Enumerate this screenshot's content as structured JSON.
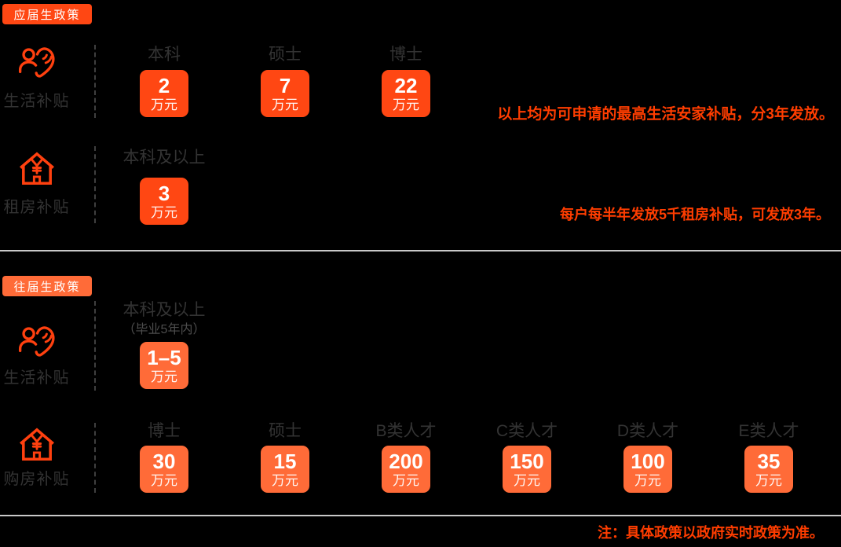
{
  "sections": [
    {
      "id": "fresh-graduates",
      "badge": "应届生政策",
      "accent": "#ff4713",
      "rows": [
        {
          "icon": "care-icon",
          "label": "生活补贴",
          "columns": [
            {
              "header": "本科",
              "value": "2",
              "unit": "万元"
            },
            {
              "header": "硕士",
              "value": "7",
              "unit": "万元"
            },
            {
              "header": "博士",
              "value": "22",
              "unit": "万元"
            }
          ],
          "note": "以上均为可申请的最高生活安家补贴，分3年发放。"
        },
        {
          "icon": "house-icon",
          "label": "租房补贴",
          "columns": [
            {
              "header": "本科及以上",
              "value": "3",
              "unit": "万元"
            }
          ],
          "note": "每户每半年发放5千租房补贴，可发放3年。"
        }
      ]
    },
    {
      "id": "previous-graduates",
      "badge": "往届生政策",
      "accent": "#ff6b38",
      "rows": [
        {
          "icon": "care-icon",
          "label": "生活补贴",
          "columns": [
            {
              "header": "本科及以上",
              "subheader": "（毕业5年内）",
              "value": "1–5",
              "unit": "万元"
            }
          ]
        },
        {
          "icon": "house-icon",
          "label": "购房补贴",
          "columns": [
            {
              "header": "博士",
              "value": "30",
              "unit": "万元"
            },
            {
              "header": "硕士",
              "value": "15",
              "unit": "万元"
            },
            {
              "header": "B类人才",
              "value": "200",
              "unit": "万元"
            },
            {
              "header": "C类人才",
              "value": "150",
              "unit": "万元"
            },
            {
              "header": "D类人才",
              "value": "100",
              "unit": "万元"
            },
            {
              "header": "E类人才",
              "value": "35",
              "unit": "万元"
            }
          ]
        }
      ]
    }
  ],
  "footnote": "注：具体政策以政府实时政策为准。",
  "colors": {
    "background": "#000000",
    "section1_accent": "#ff4713",
    "section2_accent": "#ff6b38",
    "icon": "#ff400f",
    "note": "#ff3d00",
    "header_text": "#333333",
    "divider": "#c9c9c9"
  }
}
